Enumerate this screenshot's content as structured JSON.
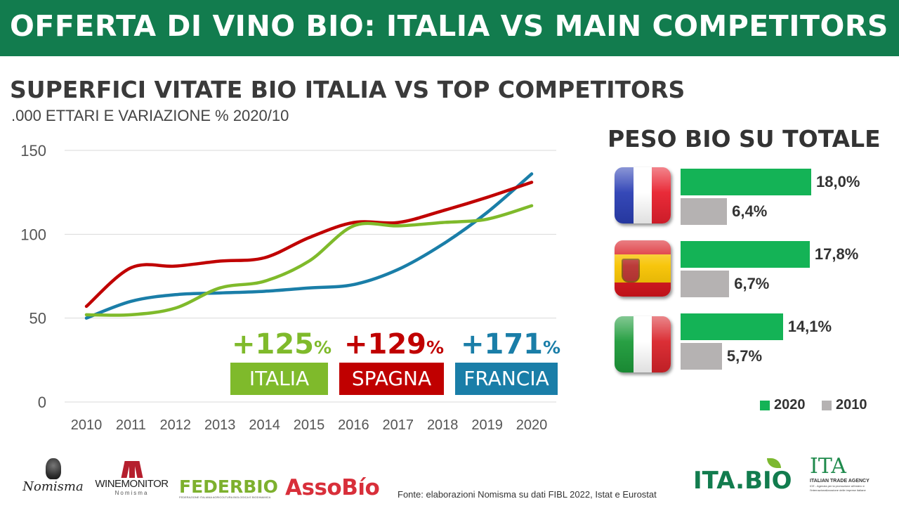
{
  "header": {
    "title": "OFFERTA DI VINO BIO: ITALIA VS MAIN COMPETITORS"
  },
  "chart_title": "SUPERFICI VITATE BIO ITALIA VS TOP COMPETITORS",
  "chart_subtitle": ".000 ETTARI E VARIAZIONE % 2020/10",
  "chart_data": [
    {
      "type": "line",
      "x": [
        2010,
        2011,
        2012,
        2013,
        2014,
        2015,
        2016,
        2017,
        2018,
        2019,
        2020
      ],
      "series": [
        {
          "name": "ITALIA",
          "color": "#7fba2b",
          "values": [
            52,
            52,
            56,
            68,
            72,
            84,
            105,
            105,
            107,
            109,
            117
          ]
        },
        {
          "name": "SPAGNA",
          "color": "#c00000",
          "values": [
            57,
            80,
            81,
            84,
            86,
            98,
            107,
            107,
            114,
            122,
            131
          ]
        },
        {
          "name": "FRANCIA",
          "color": "#1a7ea8",
          "values": [
            50,
            60,
            64,
            65,
            66,
            68,
            70,
            79,
            94,
            113,
            136
          ]
        }
      ],
      "yticks": [
        0,
        50,
        100,
        150
      ],
      "ylim": [
        0,
        150
      ],
      "grid": true,
      "annotations": [
        {
          "series": "ITALIA",
          "value": "+125",
          "unit": "%",
          "label": "ITALIA",
          "color": "#7fba2b"
        },
        {
          "series": "SPAGNA",
          "value": "+129",
          "unit": "%",
          "label": "SPAGNA",
          "color": "#c00000"
        },
        {
          "series": "FRANCIA",
          "value": "+171",
          "unit": "%",
          "label": "FRANCIA",
          "color": "#1a7ea8"
        }
      ]
    },
    {
      "type": "bar",
      "orientation": "horizontal",
      "title": "PESO BIO SU TOTALE",
      "categories": [
        "Francia",
        "Spagna",
        "Italia"
      ],
      "series": [
        {
          "name": "2020",
          "color": "#14b356",
          "values": [
            18.0,
            17.8,
            14.1
          ],
          "labels": [
            "18,0%",
            "17,8%",
            "14,1%"
          ]
        },
        {
          "name": "2010",
          "color": "#b5b2b2",
          "values": [
            6.4,
            6.7,
            5.7
          ],
          "labels": [
            "6,4%",
            "6,7%",
            "5,7%"
          ]
        }
      ],
      "legend": "bottom-right"
    }
  ],
  "flags": [
    {
      "country": "Francia",
      "icon": "france-flag-icon",
      "colors": [
        "#2b3fb4",
        "#ffffff",
        "#e8202e"
      ]
    },
    {
      "country": "Spagna",
      "icon": "spain-flag-icon",
      "colors": [
        "#d8141c",
        "#f7c300",
        "#d8141c"
      ]
    },
    {
      "country": "Italia",
      "icon": "italy-flag-icon",
      "colors": [
        "#1d9b3a",
        "#ffffff",
        "#d9242b"
      ]
    }
  ],
  "footer": {
    "logos": [
      "Nomisma",
      "WINEMONITOR",
      "Nomisma",
      "FEDERBIO",
      "FEDERAZIONE ITALIANA AGRICOLTURA BIOLOGICA E BIODINAMICA",
      "AssoBío",
      "ITA.BIO",
      "ITA",
      "ITALIAN TRADE AGENCY",
      "ICE - Agenzia per la promozione all'estero e l'internazionalizzazione delle imprese italiane"
    ],
    "source": "Fonte: elaborazioni Nomisma su dati FIBL 2022, Istat e Eurostat"
  }
}
